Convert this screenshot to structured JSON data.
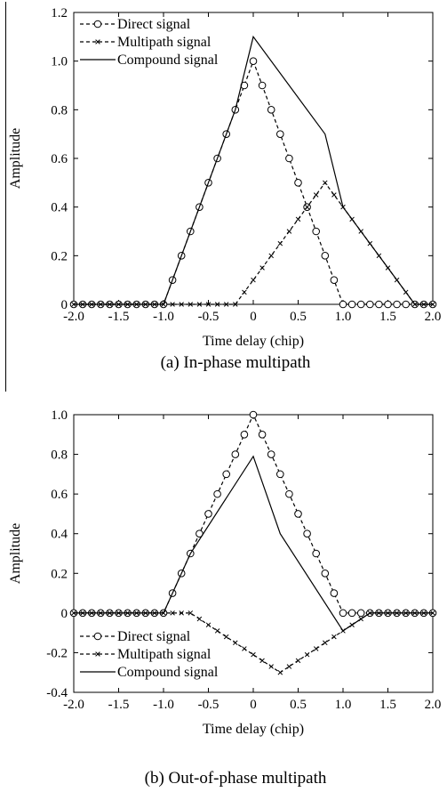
{
  "chart_data": [
    {
      "type": "line",
      "caption": "(a) In-phase multipath",
      "xlabel": "Time delay (chip)",
      "ylabel": "Amplitude",
      "xlim": [
        -2.0,
        2.0
      ],
      "ylim": [
        0,
        1.2
      ],
      "xticks": [
        "-2.0",
        "-1.5",
        "-1.0",
        "-0.5",
        "0",
        "0.5",
        "1.0",
        "1.5",
        "2.0"
      ],
      "yticks": [
        "0",
        "0.2",
        "0.4",
        "0.6",
        "0.8",
        "1.0",
        "1.2"
      ],
      "grid": false,
      "legend_position": "top-left",
      "series": [
        {
          "name": "Direct signal",
          "marker": "circle",
          "line": "dashed",
          "x": [
            -2.0,
            -1.9,
            -1.8,
            -1.7,
            -1.6,
            -1.5,
            -1.4,
            -1.3,
            -1.2,
            -1.1,
            -1.0,
            -0.9,
            -0.8,
            -0.7,
            -0.6,
            -0.5,
            -0.4,
            -0.3,
            -0.2,
            -0.1,
            0.0,
            0.1,
            0.2,
            0.3,
            0.4,
            0.5,
            0.6,
            0.7,
            0.8,
            0.9,
            1.0,
            1.1,
            1.2,
            1.3,
            1.4,
            1.5,
            1.6,
            1.7,
            1.8,
            1.9,
            2.0
          ],
          "y": [
            0,
            0,
            0,
            0,
            0,
            0,
            0,
            0,
            0,
            0,
            0,
            0.1,
            0.2,
            0.3,
            0.4,
            0.5,
            0.6,
            0.7,
            0.8,
            0.9,
            1.0,
            0.9,
            0.8,
            0.7,
            0.6,
            0.5,
            0.4,
            0.3,
            0.2,
            0.1,
            0,
            0,
            0,
            0,
            0,
            0,
            0,
            0,
            0,
            0,
            0
          ]
        },
        {
          "name": "Multipath signal",
          "marker": "x",
          "line": "dashed",
          "x": [
            -2.0,
            -1.9,
            -1.8,
            -1.7,
            -1.6,
            -1.5,
            -1.4,
            -1.3,
            -1.2,
            -1.1,
            -1.0,
            -0.9,
            -0.8,
            -0.7,
            -0.6,
            -0.5,
            -0.4,
            -0.3,
            -0.2,
            -0.1,
            0.0,
            0.1,
            0.2,
            0.3,
            0.4,
            0.5,
            0.6,
            0.7,
            0.8,
            0.9,
            1.0,
            1.1,
            1.2,
            1.3,
            1.4,
            1.5,
            1.6,
            1.7,
            1.8,
            1.9,
            2.0
          ],
          "y": [
            0,
            0,
            0,
            0,
            0,
            0,
            0,
            0,
            0,
            0,
            0,
            0,
            0,
            0,
            0,
            0,
            0,
            0,
            0,
            0.05,
            0.1,
            0.15,
            0.2,
            0.25,
            0.3,
            0.35,
            0.4,
            0.45,
            0.5,
            0.45,
            0.4,
            0.35,
            0.3,
            0.25,
            0.2,
            0.15,
            0.1,
            0.05,
            0,
            0,
            0
          ]
        },
        {
          "name": "Compound signal",
          "marker": "none",
          "line": "solid",
          "x": [
            -2.0,
            -1.0,
            -0.2,
            0.0,
            0.8,
            1.0,
            1.8,
            2.0
          ],
          "y": [
            0,
            0,
            0.8,
            1.1,
            0.7,
            0.4,
            0,
            0
          ]
        }
      ]
    },
    {
      "type": "line",
      "caption": "(b) Out-of-phase multipath",
      "xlabel": "Time delay (chip)",
      "ylabel": "Amplitude",
      "xlim": [
        -2.0,
        2.0
      ],
      "ylim": [
        -0.4,
        1.0
      ],
      "xticks": [
        "-2.0",
        "-1.5",
        "-1.0",
        "-0.5",
        "0",
        "0.5",
        "1.0",
        "1.5",
        "2.0"
      ],
      "yticks": [
        "-0.4",
        "-0.2",
        "0",
        "0.2",
        "0.4",
        "0.6",
        "0.8",
        "1.0"
      ],
      "grid": false,
      "legend_position": "bottom-left",
      "series": [
        {
          "name": "Direct signal",
          "marker": "circle",
          "line": "dashed",
          "x": [
            -2.0,
            -1.9,
            -1.8,
            -1.7,
            -1.6,
            -1.5,
            -1.4,
            -1.3,
            -1.2,
            -1.1,
            -1.0,
            -0.9,
            -0.8,
            -0.7,
            -0.6,
            -0.5,
            -0.4,
            -0.3,
            -0.2,
            -0.1,
            0.0,
            0.1,
            0.2,
            0.3,
            0.4,
            0.5,
            0.6,
            0.7,
            0.8,
            0.9,
            1.0,
            1.1,
            1.2,
            1.3,
            1.4,
            1.5,
            1.6,
            1.7,
            1.8,
            1.9,
            2.0
          ],
          "y": [
            0,
            0,
            0,
            0,
            0,
            0,
            0,
            0,
            0,
            0,
            0,
            0.1,
            0.2,
            0.3,
            0.4,
            0.5,
            0.6,
            0.7,
            0.8,
            0.9,
            1.0,
            0.9,
            0.8,
            0.7,
            0.6,
            0.5,
            0.4,
            0.3,
            0.2,
            0.1,
            0,
            0,
            0,
            0,
            0,
            0,
            0,
            0,
            0,
            0,
            0
          ]
        },
        {
          "name": "Multipath signal",
          "marker": "x",
          "line": "dashed",
          "x": [
            -2.0,
            -1.9,
            -1.8,
            -1.7,
            -1.6,
            -1.5,
            -1.4,
            -1.3,
            -1.2,
            -1.1,
            -1.0,
            -0.9,
            -0.8,
            -0.7,
            -0.6,
            -0.5,
            -0.4,
            -0.3,
            -0.2,
            -0.1,
            0.0,
            0.1,
            0.2,
            0.3,
            0.4,
            0.5,
            0.6,
            0.7,
            0.8,
            0.9,
            1.0,
            1.1,
            1.2,
            1.3,
            1.4,
            1.5,
            1.6,
            1.7,
            1.8,
            1.9,
            2.0
          ],
          "y": [
            0,
            0,
            0,
            0,
            0,
            0,
            0,
            0,
            0,
            0,
            0,
            0,
            0,
            0,
            -0.03,
            -0.06,
            -0.09,
            -0.12,
            -0.15,
            -0.18,
            -0.21,
            -0.24,
            -0.27,
            -0.3,
            -0.27,
            -0.24,
            -0.21,
            -0.18,
            -0.15,
            -0.12,
            -0.09,
            -0.06,
            -0.03,
            0,
            0,
            0,
            0,
            0,
            0,
            0,
            0
          ]
        },
        {
          "name": "Compound signal",
          "marker": "none",
          "line": "solid",
          "x": [
            -2.0,
            -1.0,
            -0.7,
            0.0,
            0.3,
            1.0,
            1.3,
            2.0
          ],
          "y": [
            0,
            0,
            0.3,
            0.79,
            0.4,
            -0.09,
            0,
            0
          ]
        }
      ]
    }
  ]
}
